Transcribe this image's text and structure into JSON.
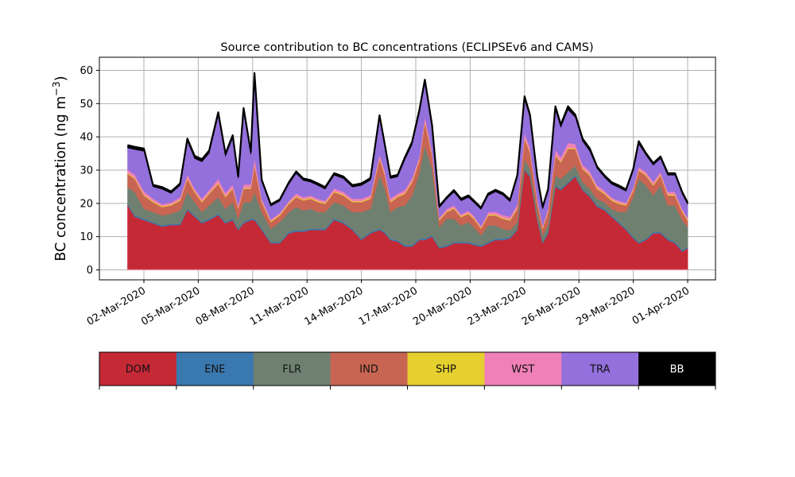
{
  "chart_data": {
    "type": "area",
    "stacked": true,
    "title": "Source contribution to BC concentrations (ECLIPSEv6 and CAMS)",
    "xlabel": "",
    "ylabel": "BC concentration (ng m⁻³)",
    "ylabel_base": "BC concentration (ng m",
    "ylabel_sup": "−3",
    "ylabel_end": ")",
    "ylim": [
      -3,
      64
    ],
    "xlim_days": [
      0.35,
      34.0
    ],
    "grid": true,
    "yticks": [
      0,
      10,
      20,
      30,
      40,
      50,
      60
    ],
    "xticks": [
      {
        "day": 2,
        "label": "02-Mar-2020"
      },
      {
        "day": 5,
        "label": "05-Mar-2020"
      },
      {
        "day": 8,
        "label": "08-Mar-2020"
      },
      {
        "day": 11,
        "label": "11-Mar-2020"
      },
      {
        "day": 14,
        "label": "14-Mar-2020"
      },
      {
        "day": 17,
        "label": "17-Mar-2020"
      },
      {
        "day": 20,
        "label": "20-Mar-2020"
      },
      {
        "day": 23,
        "label": "23-Mar-2020"
      },
      {
        "day": 26,
        "label": "26-Mar-2020"
      },
      {
        "day": 29,
        "label": "29-Mar-2020"
      },
      {
        "day": 32,
        "label": "01-Apr-2020"
      }
    ],
    "x_unit": "day of March 2020",
    "x": [
      1.1,
      1.5,
      2.0,
      2.5,
      3.0,
      3.5,
      4.0,
      4.4,
      4.8,
      5.2,
      5.6,
      6.1,
      6.5,
      6.9,
      7.2,
      7.5,
      7.9,
      8.1,
      8.5,
      9.0,
      9.5,
      10.0,
      10.4,
      10.8,
      11.2,
      11.6,
      12.0,
      12.5,
      13.0,
      13.5,
      14.0,
      14.5,
      15.0,
      15.3,
      15.6,
      16.0,
      16.4,
      16.8,
      17.2,
      17.5,
      17.9,
      18.3,
      18.7,
      19.1,
      19.5,
      19.9,
      20.2,
      20.6,
      21.0,
      21.4,
      21.8,
      22.2,
      22.6,
      23.0,
      23.3,
      23.7,
      24.0,
      24.3,
      24.7,
      25.0,
      25.4,
      25.8,
      26.2,
      26.6,
      27.0,
      27.4,
      27.8,
      28.2,
      28.6,
      29.0,
      29.3,
      29.7,
      30.1,
      30.5,
      30.9,
      31.3,
      31.7,
      32.0
    ],
    "series": [
      {
        "name": "DOM",
        "color": "#c62936",
        "values": [
          19.5,
          16,
          15,
          14,
          13,
          13.5,
          13.5,
          18,
          16,
          14,
          15,
          16.5,
          14,
          15,
          12,
          14,
          15,
          15,
          12,
          8,
          8,
          11,
          11.5,
          11.5,
          12,
          12,
          12,
          15,
          14,
          12,
          9,
          11,
          12,
          11,
          9,
          8.5,
          7,
          7,
          9,
          9,
          10,
          6.5,
          7,
          8,
          8,
          8,
          7.5,
          7,
          8,
          9,
          9,
          9.5,
          12,
          30,
          28,
          15,
          8,
          11,
          25,
          24,
          26,
          28,
          24,
          22,
          19,
          18,
          16,
          14,
          12,
          9.5,
          8,
          9,
          11,
          11,
          9,
          8,
          5.5,
          6.5
        ]
      },
      {
        "name": "ENE",
        "color": "#3a78b0",
        "values": [
          0.4,
          0.4,
          0.4,
          0.4,
          0.4,
          0.4,
          0.4,
          0.4,
          0.4,
          0.4,
          0.4,
          0.4,
          0.4,
          0.4,
          0.4,
          0.4,
          0.4,
          0.4,
          0.4,
          0.4,
          0.4,
          0.4,
          0.4,
          0.4,
          0.4,
          0.4,
          0.4,
          0.4,
          0.4,
          0.4,
          0.4,
          0.4,
          0.4,
          0.4,
          0.4,
          0.4,
          0.4,
          0.4,
          0.4,
          0.4,
          0.4,
          0.4,
          0.4,
          0.4,
          0.4,
          0.4,
          0.4,
          0.4,
          0.4,
          0.4,
          0.4,
          0.4,
          0.4,
          0.4,
          0.4,
          0.4,
          0.4,
          0.4,
          0.4,
          0.4,
          0.4,
          0.4,
          0.4,
          0.4,
          0.4,
          0.4,
          0.4,
          0.4,
          0.4,
          0.4,
          0.4,
          0.4,
          0.4,
          0.4,
          0.4,
          0.4,
          0.4,
          0.4
        ]
      },
      {
        "name": "FLR",
        "color": "#6f8070",
        "values": [
          5,
          7,
          3,
          3,
          3,
          3,
          4,
          5,
          4,
          3,
          4,
          5,
          4,
          5,
          3,
          6,
          5,
          8,
          5,
          4,
          6,
          6,
          7,
          6,
          6,
          5,
          5,
          5,
          5,
          5,
          8,
          7,
          16,
          13,
          8,
          10,
          12,
          15,
          20,
          28,
          20,
          6,
          8,
          7,
          5,
          6,
          5,
          3,
          5,
          4,
          3,
          2,
          2,
          3,
          2,
          2,
          2,
          2,
          3,
          3,
          3,
          3,
          2,
          2,
          2,
          2,
          2,
          3,
          5,
          12,
          19,
          16,
          11,
          14,
          10,
          11,
          9,
          6
        ]
      },
      {
        "name": "IND",
        "color": "#c86552",
        "values": [
          4,
          4,
          4,
          3,
          2.5,
          2.5,
          3,
          4,
          3,
          3,
          3.5,
          4,
          3.5,
          4,
          3,
          4,
          4,
          8,
          3,
          2,
          2,
          2.5,
          3,
          3,
          3,
          3,
          2.5,
          3,
          3,
          3,
          3,
          3,
          5,
          4,
          3,
          3,
          3.5,
          4,
          3.5,
          7,
          4,
          2,
          2,
          3,
          2.5,
          2.5,
          2.5,
          2,
          3,
          3,
          3,
          3,
          4,
          6,
          5,
          3,
          2,
          4,
          6,
          5,
          7,
          5,
          4,
          4,
          3,
          2.5,
          2.5,
          2.5,
          2,
          2,
          2.5,
          3,
          3,
          3,
          3,
          3,
          2.5,
          2
        ]
      },
      {
        "name": "SHP",
        "color": "#e5d030",
        "values": [
          0.3,
          0.3,
          0.3,
          0.3,
          0.3,
          0.3,
          0.3,
          0.3,
          0.3,
          0.3,
          0.3,
          0.3,
          0.3,
          0.3,
          0.3,
          0.3,
          0.3,
          0.3,
          0.3,
          0.3,
          0.3,
          0.3,
          0.3,
          0.3,
          0.3,
          0.3,
          0.3,
          0.3,
          0.3,
          0.3,
          0.3,
          0.3,
          0.3,
          0.3,
          0.3,
          0.3,
          0.3,
          0.3,
          0.3,
          0.3,
          0.3,
          0.3,
          0.3,
          0.3,
          0.3,
          0.3,
          0.3,
          0.3,
          0.3,
          0.3,
          0.3,
          0.3,
          0.3,
          0.3,
          0.3,
          0.3,
          0.3,
          0.3,
          0.3,
          0.3,
          0.3,
          0.3,
          0.3,
          0.3,
          0.3,
          0.3,
          0.3,
          0.3,
          0.3,
          0.3,
          0.3,
          0.3,
          0.3,
          0.3,
          0.3,
          0.3,
          0.3,
          0.3
        ]
      },
      {
        "name": "WST",
        "color": "#f080b8",
        "values": [
          1,
          1,
          1,
          0.8,
          0.6,
          0.6,
          0.7,
          1,
          0.8,
          0.8,
          0.9,
          1.2,
          1,
          1,
          0.8,
          1,
          1,
          2,
          0.8,
          0.5,
          0.5,
          0.6,
          0.8,
          0.7,
          0.7,
          0.7,
          0.6,
          0.8,
          0.8,
          0.7,
          0.7,
          0.8,
          1,
          1,
          0.8,
          0.8,
          0.9,
          1,
          1,
          1.5,
          1,
          0.5,
          0.6,
          0.7,
          0.6,
          0.6,
          0.6,
          0.5,
          0.7,
          0.8,
          0.8,
          0.8,
          1,
          1.5,
          1.2,
          0.8,
          0.6,
          1,
          1.5,
          1.2,
          1.5,
          1.2,
          1,
          1,
          0.8,
          0.7,
          0.6,
          0.6,
          0.5,
          0.6,
          0.7,
          0.8,
          0.8,
          0.8,
          0.8,
          0.8,
          0.6,
          0.5
        ]
      },
      {
        "name": "TRA",
        "color": "#9370db",
        "values": [
          6.5,
          7.5,
          12,
          3.5,
          4.5,
          2.7,
          3.5,
          10,
          9,
          11,
          11,
          19,
          11,
          14,
          8,
          22,
          9,
          24,
          5,
          4,
          3.5,
          5,
          6,
          5,
          4,
          4,
          3.5,
          4,
          4,
          3.5,
          4,
          4.5,
          11,
          7,
          6,
          5,
          9,
          10,
          13,
          10,
          7,
          3,
          3,
          4,
          4,
          4,
          4,
          5,
          5,
          6,
          6,
          4.5,
          8,
          10,
          9,
          6,
          5,
          5,
          12,
          9,
          10,
          8,
          7,
          6,
          5,
          4,
          4,
          4,
          3.5,
          5,
          7,
          5,
          5,
          4,
          5,
          5,
          4.5,
          4
        ]
      },
      {
        "name": "BB",
        "color": "#000000",
        "values": [
          0.8,
          0.8,
          0.8,
          0.6,
          0.6,
          0.6,
          0.6,
          0.8,
          0.8,
          0.8,
          0.8,
          1,
          0.8,
          0.8,
          0.6,
          1,
          0.8,
          1.5,
          0.6,
          0.5,
          0.5,
          0.6,
          0.6,
          0.6,
          0.6,
          0.6,
          0.6,
          0.6,
          0.6,
          0.6,
          0.6,
          0.6,
          0.8,
          0.8,
          0.6,
          0.6,
          0.8,
          0.8,
          1,
          1,
          0.8,
          0.5,
          0.5,
          0.6,
          0.6,
          0.6,
          0.6,
          0.5,
          0.6,
          0.6,
          0.6,
          0.6,
          0.8,
          1,
          0.8,
          0.6,
          0.6,
          0.6,
          1,
          0.8,
          1,
          0.8,
          0.8,
          0.8,
          0.6,
          0.6,
          0.6,
          0.6,
          0.5,
          0.6,
          0.8,
          0.6,
          0.6,
          0.6,
          0.6,
          0.6,
          0.6,
          0.5
        ]
      }
    ]
  },
  "legend": {
    "placement": "bottom",
    "entries": [
      {
        "label": "DOM",
        "color": "#c62936",
        "text_color": "#111111"
      },
      {
        "label": "ENE",
        "color": "#3a78b0",
        "text_color": "#111111"
      },
      {
        "label": "FLR",
        "color": "#6f8070",
        "text_color": "#111111"
      },
      {
        "label": "IND",
        "color": "#c86552",
        "text_color": "#111111"
      },
      {
        "label": "SHP",
        "color": "#e5d030",
        "text_color": "#111111"
      },
      {
        "label": "WST",
        "color": "#f080b8",
        "text_color": "#111111"
      },
      {
        "label": "TRA",
        "color": "#9370db",
        "text_color": "#111111"
      },
      {
        "label": "BB",
        "color": "#000000",
        "text_color": "#ffffff"
      }
    ]
  }
}
